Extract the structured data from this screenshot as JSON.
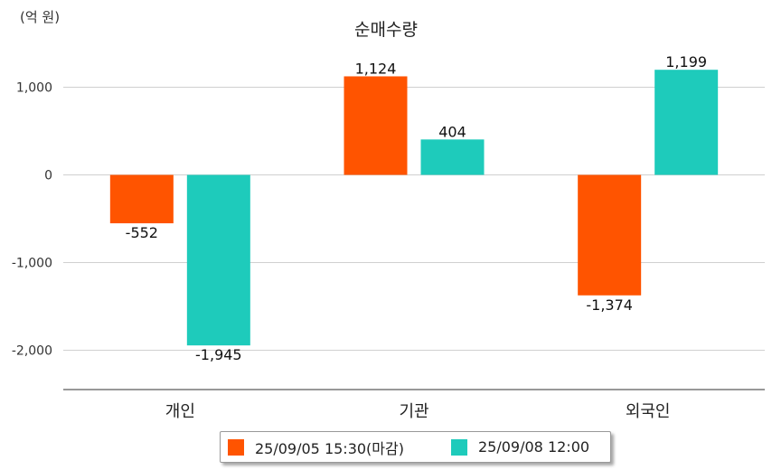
{
  "chart_data": {
    "type": "bar",
    "title": "순매수량",
    "unit_label": "(억 원)",
    "categories": [
      "개인",
      "기관",
      "외국인"
    ],
    "series": [
      {
        "name": "25/09/05 15:30(마감)",
        "color": "#ff5400",
        "values": [
          -552,
          1124,
          -1374
        ],
        "labels": [
          "-552",
          "1,124",
          "-1,374"
        ]
      },
      {
        "name": "25/09/08 12:00",
        "color": "#1ecbbb",
        "values": [
          -1945,
          404,
          1199
        ],
        "labels": [
          "-1,945",
          "404",
          "1,199"
        ]
      }
    ],
    "yticks": [
      1000,
      0,
      -1000,
      -2000
    ],
    "ytick_labels": [
      "1,000",
      "0",
      "-1,000",
      "-2,000"
    ],
    "ylim": [
      -2450,
      1450
    ],
    "grid": true,
    "legend_position": "bottom"
  }
}
